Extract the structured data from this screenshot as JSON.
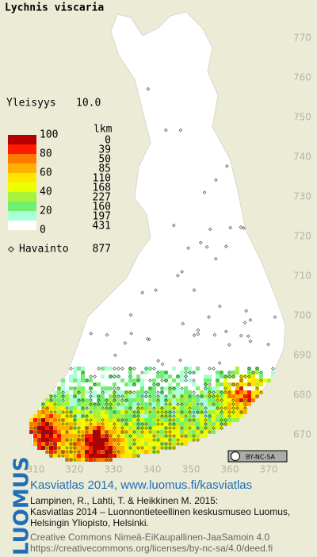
{
  "title": "Lychnis viscaria",
  "frequency": {
    "label": "Yleisyys",
    "value": "10.0"
  },
  "legend": {
    "scale": [
      100,
      80,
      60,
      40,
      20,
      0
    ],
    "count_header": "lkm",
    "counts": [
      0,
      39,
      50,
      85,
      110,
      168,
      227,
      160,
      197,
      431
    ],
    "colors": [
      "#b40000",
      "#ff1a00",
      "#ff7a00",
      "#ffb000",
      "#ffe600",
      "#eaff00",
      "#a8f23c",
      "#70f070",
      "#a8ffd8",
      "#ffffff"
    ]
  },
  "observations": {
    "label": "Havainto",
    "value": 877
  },
  "map": {
    "yticks": [
      770,
      760,
      750,
      740,
      730,
      720,
      710,
      700,
      690,
      680,
      670
    ],
    "xticks": [
      310,
      320,
      330,
      340,
      350,
      360,
      370
    ]
  },
  "license_badge": "BY-NC-SA",
  "footer": {
    "logo": "LUOMUS",
    "headline": "Kasviatlas 2014, www.luomus.fi/kasviatlas",
    "citation": [
      "Lampinen, R., Lahti, T. & Heikkinen M. 2015:",
      "Kasviatlas 2014 – Luonnontieteellinen keskusmuseo Luomus,",
      "Helsingin Yliopisto, Helsinki."
    ],
    "license": [
      "Creative Commons Nimeä-EiKaupallinen-JaaSamoin 4.0",
      "https://creativecommons.org/licenses/by-nc-sa/4.0/deed.fi"
    ]
  }
}
